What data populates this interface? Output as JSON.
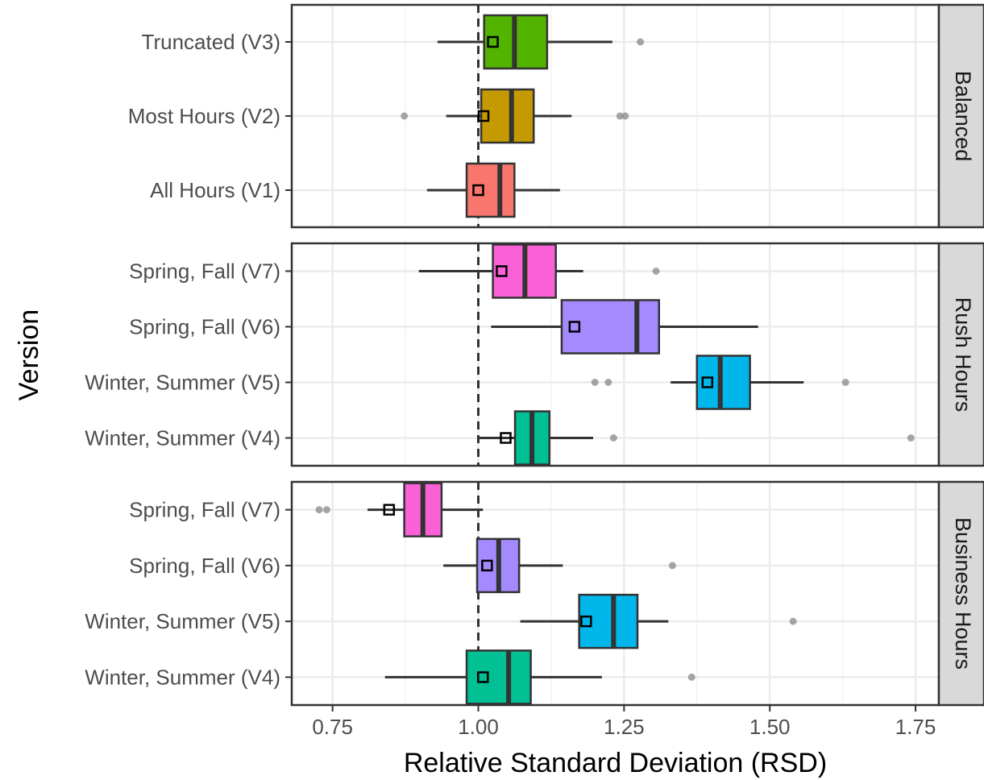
{
  "chart_data": {
    "type": "boxplot",
    "xlabel": "Relative Standard Deviation (RSD)",
    "ylabel": "Version",
    "xlim": [
      0.68,
      1.79
    ],
    "x_ticks": [
      0.75,
      1.0,
      1.25,
      1.5,
      1.75
    ],
    "x_tick_labels": [
      "0.75",
      "1.00",
      "1.25",
      "1.50",
      "1.75"
    ],
    "reference_line": {
      "x": 1.0,
      "style": "dashed"
    },
    "grid": true,
    "mean_marker": "open square",
    "facet_position": "right",
    "facets": [
      {
        "name": "Balanced",
        "categories": [
          {
            "label": "Truncated (V3)",
            "color": "#53B400",
            "whisker_low": 0.93,
            "q1": 1.01,
            "median": 1.062,
            "q3": 1.118,
            "whisker_high": 1.23,
            "mean": 1.025,
            "outliers": [
              1.278
            ]
          },
          {
            "label": "Most Hours (V2)",
            "color": "#C49A00",
            "whisker_low": 0.945,
            "q1": 1.005,
            "median": 1.057,
            "q3": 1.095,
            "whisker_high": 1.16,
            "mean": 1.009,
            "outliers": [
              0.873,
              1.243,
              1.252
            ]
          },
          {
            "label": "All Hours (V1)",
            "color": "#F8766D",
            "whisker_low": 0.912,
            "q1": 0.98,
            "median": 1.037,
            "q3": 1.062,
            "whisker_high": 1.14,
            "mean": 1.0,
            "outliers": []
          }
        ]
      },
      {
        "name": "Rush Hours",
        "categories": [
          {
            "label": "Spring, Fall (V7)",
            "color": "#FB61D7",
            "whisker_low": 0.898,
            "q1": 1.025,
            "median": 1.08,
            "q3": 1.133,
            "whisker_high": 1.18,
            "mean": 1.04,
            "outliers": [
              1.305
            ]
          },
          {
            "label": "Spring, Fall (V6)",
            "color": "#A58AFF",
            "whisker_low": 1.022,
            "q1": 1.143,
            "median": 1.272,
            "q3": 1.31,
            "whisker_high": 1.48,
            "mean": 1.165,
            "outliers": []
          },
          {
            "label": "Winter, Summer (V5)",
            "color": "#00B6EB",
            "whisker_low": 1.33,
            "q1": 1.375,
            "median": 1.415,
            "q3": 1.466,
            "whisker_high": 1.558,
            "mean": 1.393,
            "outliers": [
              1.2,
              1.223,
              1.63
            ]
          },
          {
            "label": "Winter, Summer (V4)",
            "color": "#00C094",
            "whisker_low": 0.998,
            "q1": 1.063,
            "median": 1.092,
            "q3": 1.122,
            "whisker_high": 1.197,
            "mean": 1.047,
            "outliers": [
              1.232,
              1.742
            ]
          }
        ]
      },
      {
        "name": "Business Hours",
        "categories": [
          {
            "label": "Spring, Fall (V7)",
            "color": "#FB61D7",
            "whisker_low": 0.81,
            "q1": 0.873,
            "median": 0.905,
            "q3": 0.937,
            "whisker_high": 1.008,
            "mean": 0.847,
            "outliers": [
              0.727,
              0.74
            ]
          },
          {
            "label": "Spring, Fall (V6)",
            "color": "#A58AFF",
            "whisker_low": 0.94,
            "q1": 0.998,
            "median": 1.035,
            "q3": 1.07,
            "whisker_high": 1.145,
            "mean": 1.015,
            "outliers": [
              1.333
            ]
          },
          {
            "label": "Winter, Summer (V5)",
            "color": "#00B6EB",
            "whisker_low": 1.072,
            "q1": 1.173,
            "median": 1.232,
            "q3": 1.273,
            "whisker_high": 1.326,
            "mean": 1.185,
            "outliers": [
              1.54
            ]
          },
          {
            "label": "Winter, Summer (V4)",
            "color": "#00C094",
            "whisker_low": 0.84,
            "q1": 0.98,
            "median": 1.052,
            "q3": 1.09,
            "whisker_high": 1.212,
            "mean": 1.008,
            "outliers": [
              1.366
            ]
          }
        ]
      }
    ]
  }
}
